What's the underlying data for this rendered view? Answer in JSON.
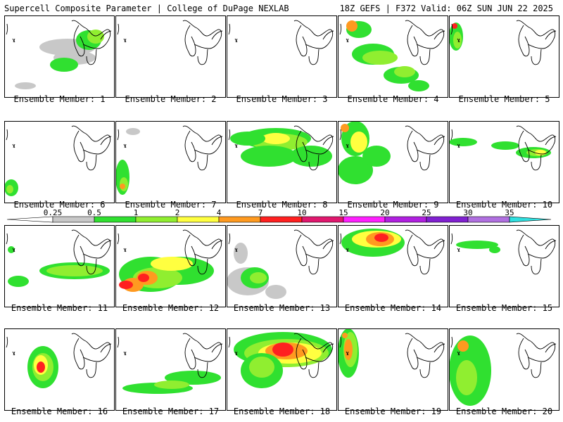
{
  "header": {
    "left": "Supercell Composite Parameter | College of DuPage NEXLAB",
    "right": "18Z GEFS | F372 Valid: 06Z SUN JUN 22 2025"
  },
  "label_prefix": "Ensemble Member: ",
  "members": [
    {
      "id": "1"
    },
    {
      "id": "2"
    },
    {
      "id": "3"
    },
    {
      "id": "4"
    },
    {
      "id": "5"
    },
    {
      "id": "6"
    },
    {
      "id": "7"
    },
    {
      "id": "8"
    },
    {
      "id": "9"
    },
    {
      "id": "10"
    },
    {
      "id": "11"
    },
    {
      "id": "12"
    },
    {
      "id": "13"
    },
    {
      "id": "14"
    },
    {
      "id": "15"
    },
    {
      "id": "16"
    },
    {
      "id": "17"
    },
    {
      "id": "18"
    },
    {
      "id": "19"
    },
    {
      "id": "20"
    }
  ],
  "colorbar": {
    "ticks": [
      "0.25",
      "0.5",
      "1",
      "2",
      "4",
      "7",
      "10",
      "15",
      "20",
      "25",
      "30",
      "35"
    ],
    "colors": [
      "#c8c8c8",
      "#30e030",
      "#90ee30",
      "#ffff40",
      "#ff9a20",
      "#ff2020",
      "#e0186e",
      "#ff20ff",
      "#b020e0",
      "#8020d0",
      "#b070e0",
      "#30e0e0"
    ]
  }
}
